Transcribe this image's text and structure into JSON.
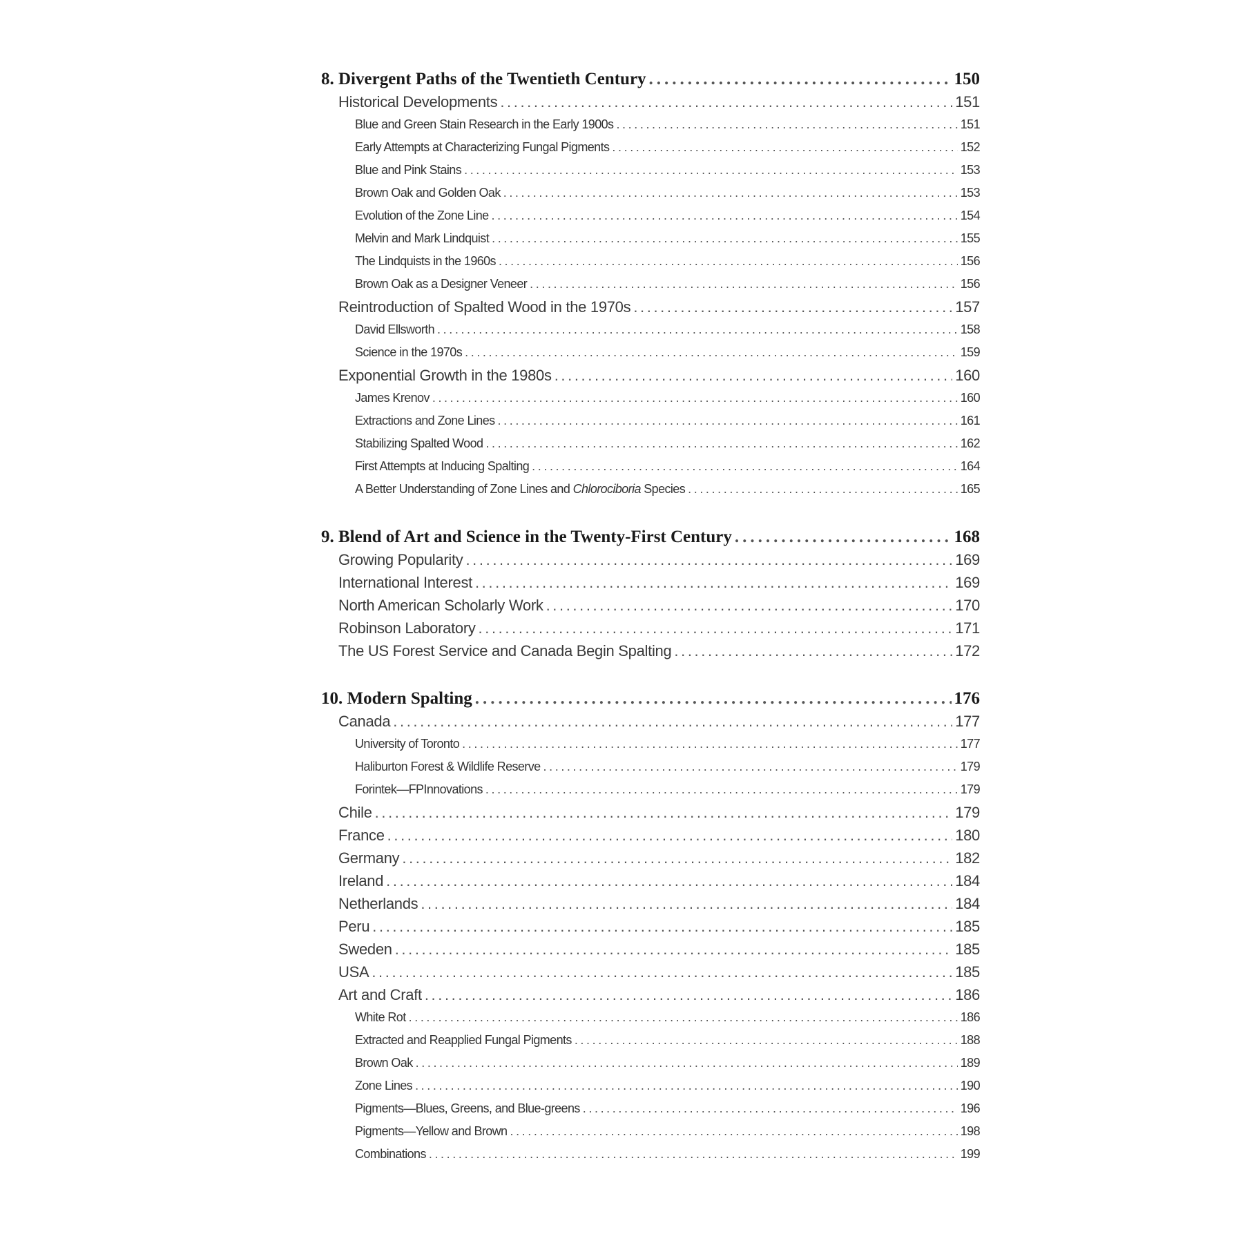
{
  "sections": [
    {
      "entries": [
        {
          "level": 0,
          "title": "8. Divergent Paths of the Twentieth Century",
          "page": "150"
        },
        {
          "level": 1,
          "title": "Historical Developments",
          "page": "151"
        },
        {
          "level": 2,
          "title": "Blue and Green Stain Research in the Early 1900s",
          "page": "151"
        },
        {
          "level": 2,
          "title": "Early Attempts at Characterizing Fungal Pigments",
          "page": "152"
        },
        {
          "level": 2,
          "title": "Blue and Pink Stains",
          "page": "153"
        },
        {
          "level": 2,
          "title": "Brown Oak and Golden Oak",
          "page": "153"
        },
        {
          "level": 2,
          "title": "Evolution of the Zone Line",
          "page": "154"
        },
        {
          "level": 2,
          "title": "Melvin and Mark Lindquist",
          "page": "155"
        },
        {
          "level": 2,
          "title": "The Lindquists in the 1960s",
          "page": "156"
        },
        {
          "level": 2,
          "title": "Brown Oak as a Designer Veneer",
          "page": "156"
        },
        {
          "level": 1,
          "title": "Reintroduction of Spalted Wood in the 1970s",
          "page": "157"
        },
        {
          "level": 2,
          "title": "David Ellsworth",
          "page": "158"
        },
        {
          "level": 2,
          "title": "Science in the 1970s",
          "page": "159"
        },
        {
          "level": 1,
          "title": "Exponential Growth in the 1980s",
          "page": "160"
        },
        {
          "level": 2,
          "title": "James Krenov",
          "page": "160"
        },
        {
          "level": 2,
          "title": "Extractions and Zone Lines",
          "page": "161"
        },
        {
          "level": 2,
          "title": "Stabilizing Spalted Wood",
          "page": "162"
        },
        {
          "level": 2,
          "title": "First Attempts at Inducing Spalting",
          "page": "164"
        },
        {
          "level": 2,
          "title": "A Better Understanding of Zone Lines and ",
          "title_italic": "Chlorociboria",
          "title_after": " Species",
          "page": "165"
        }
      ]
    },
    {
      "entries": [
        {
          "level": 0,
          "title": "9. Blend of Art and Science in the Twenty-First Century",
          "page": "168"
        },
        {
          "level": 1,
          "title": "Growing Popularity",
          "page": "169"
        },
        {
          "level": 1,
          "title": "International Interest",
          "page": "169"
        },
        {
          "level": 1,
          "title": "North American Scholarly Work",
          "page": "170"
        },
        {
          "level": 1,
          "title": "Robinson Laboratory",
          "page": "171"
        },
        {
          "level": 1,
          "title": "The US Forest Service and Canada Begin Spalting",
          "page": "172"
        }
      ]
    },
    {
      "entries": [
        {
          "level": 0,
          "title": "10. Modern Spalting",
          "page": "176"
        },
        {
          "level": 1,
          "title": "Canada",
          "page": "177"
        },
        {
          "level": 2,
          "title": "University of Toronto",
          "page": "177"
        },
        {
          "level": 2,
          "title": "Haliburton Forest & Wildlife Reserve",
          "page": "179"
        },
        {
          "level": 2,
          "title": "Forintek—FPInnovations",
          "page": "179"
        },
        {
          "level": 1,
          "title": "Chile",
          "page": "179"
        },
        {
          "level": 1,
          "title": "France",
          "page": "180"
        },
        {
          "level": 1,
          "title": "Germany",
          "page": "182"
        },
        {
          "level": 1,
          "title": "Ireland",
          "page": "184"
        },
        {
          "level": 1,
          "title": "Netherlands",
          "page": "184"
        },
        {
          "level": 1,
          "title": "Peru",
          "page": "185"
        },
        {
          "level": 1,
          "title": "Sweden",
          "page": "185"
        },
        {
          "level": 1,
          "title": "USA",
          "page": "185"
        },
        {
          "level": 1,
          "title": "Art and Craft",
          "page": "186"
        },
        {
          "level": 2,
          "title": "White Rot",
          "page": "186"
        },
        {
          "level": 2,
          "title": "Extracted and Reapplied Fungal Pigments",
          "page": "188"
        },
        {
          "level": 2,
          "title": "Brown Oak",
          "page": "189"
        },
        {
          "level": 2,
          "title": "Zone Lines",
          "page": "190"
        },
        {
          "level": 2,
          "title": "Pigments—Blues, Greens, and Blue-greens",
          "page": "196"
        },
        {
          "level": 2,
          "title": "Pigments—Yellow and Brown",
          "page": "198"
        },
        {
          "level": 2,
          "title": "Combinations",
          "page": "199"
        }
      ]
    }
  ]
}
